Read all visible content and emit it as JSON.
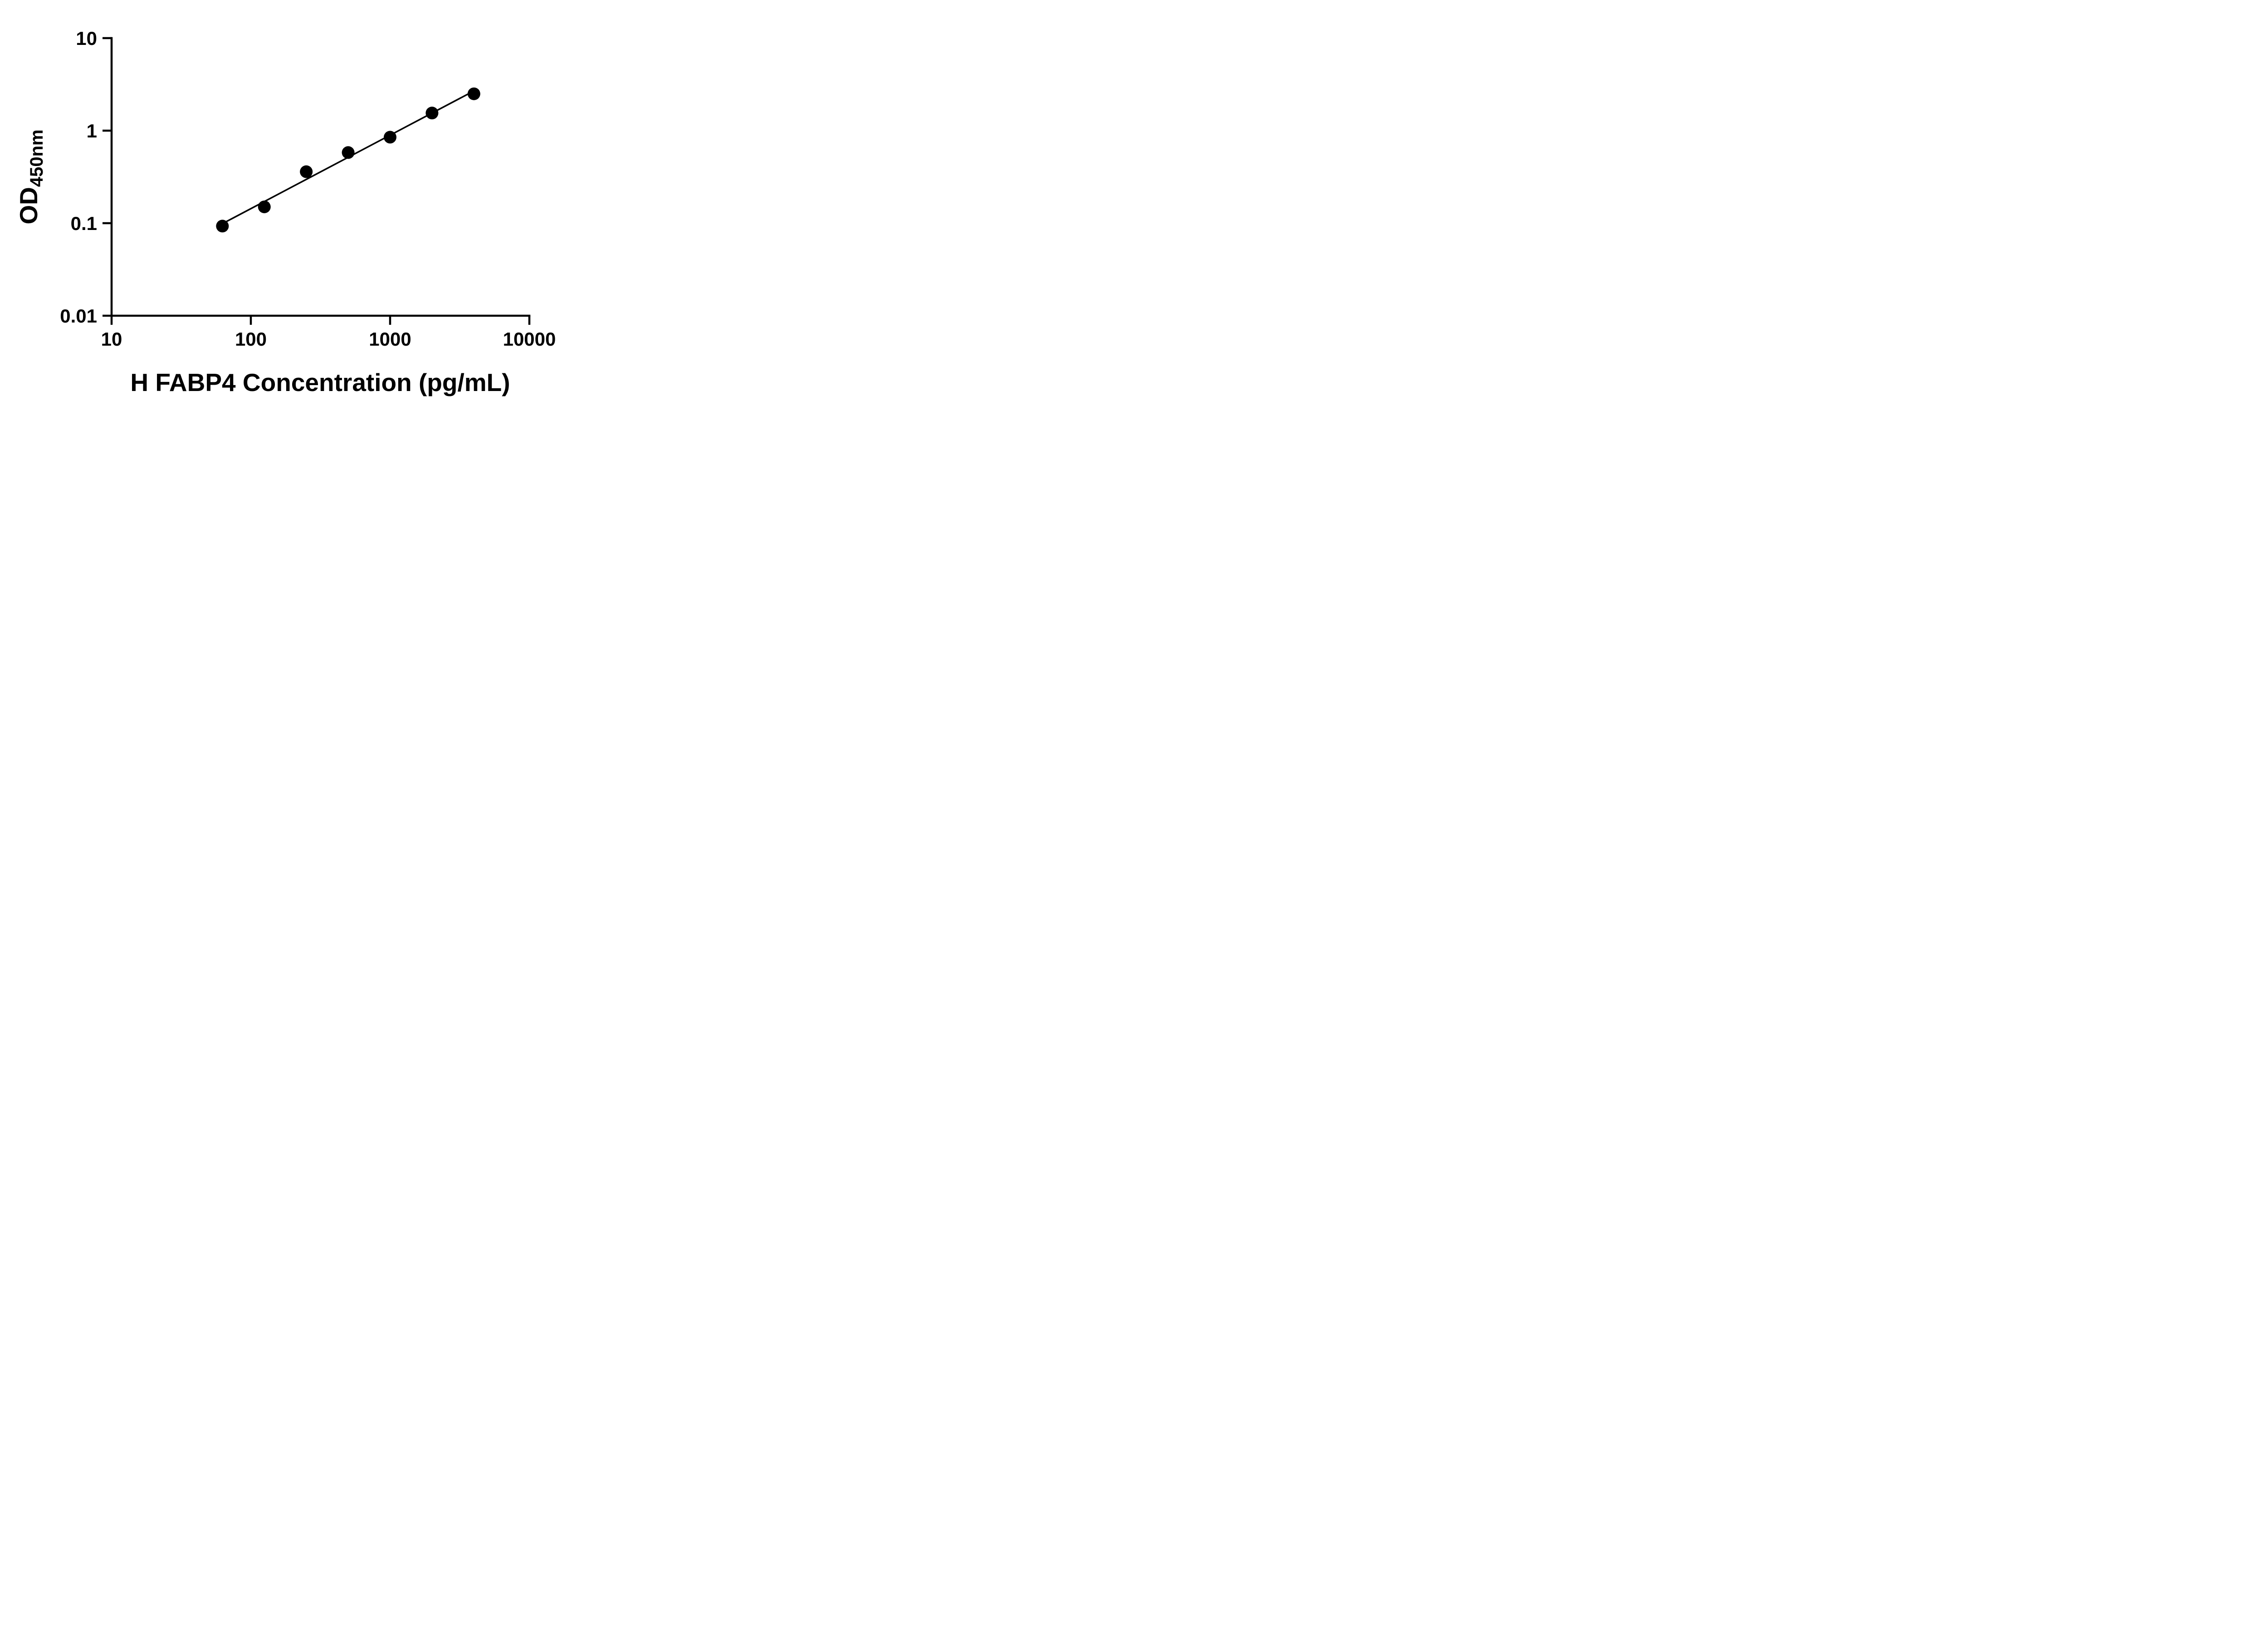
{
  "figure": {
    "background": "#ffffff"
  },
  "chart_data": {
    "type": "scatter",
    "title": "",
    "xlabel": "H FABP4 Concentration (pg/mL)",
    "ylabel_main": "OD",
    "ylabel_sub": "450nm",
    "xscale": "log",
    "yscale": "log",
    "xlim": [
      10,
      10000
    ],
    "ylim": [
      0.01,
      10
    ],
    "x_ticks": [
      10,
      100,
      1000,
      10000
    ],
    "x_tick_labels": [
      "10",
      "100",
      "1000",
      "10000"
    ],
    "y_ticks": [
      0.01,
      0.1,
      1,
      10
    ],
    "y_tick_labels": [
      "0.01",
      "0.1",
      "1",
      "10"
    ],
    "grid": false,
    "legend": null,
    "axis_color": "#000000",
    "marker": {
      "shape": "circle",
      "color": "#000000",
      "radius_px": 14
    },
    "line_color": "#000000",
    "x": [
      62.5,
      125,
      250,
      500,
      1000,
      2000,
      4000
    ],
    "y": [
      0.093,
      0.15,
      0.36,
      0.58,
      0.85,
      1.55,
      2.5
    ],
    "trendline": {
      "kind": "power-fit-loglog-linear",
      "slope_loglog": 0.794,
      "intercept_loglog": -2.431,
      "x_start": 62.5,
      "x_end": 4000
    }
  }
}
